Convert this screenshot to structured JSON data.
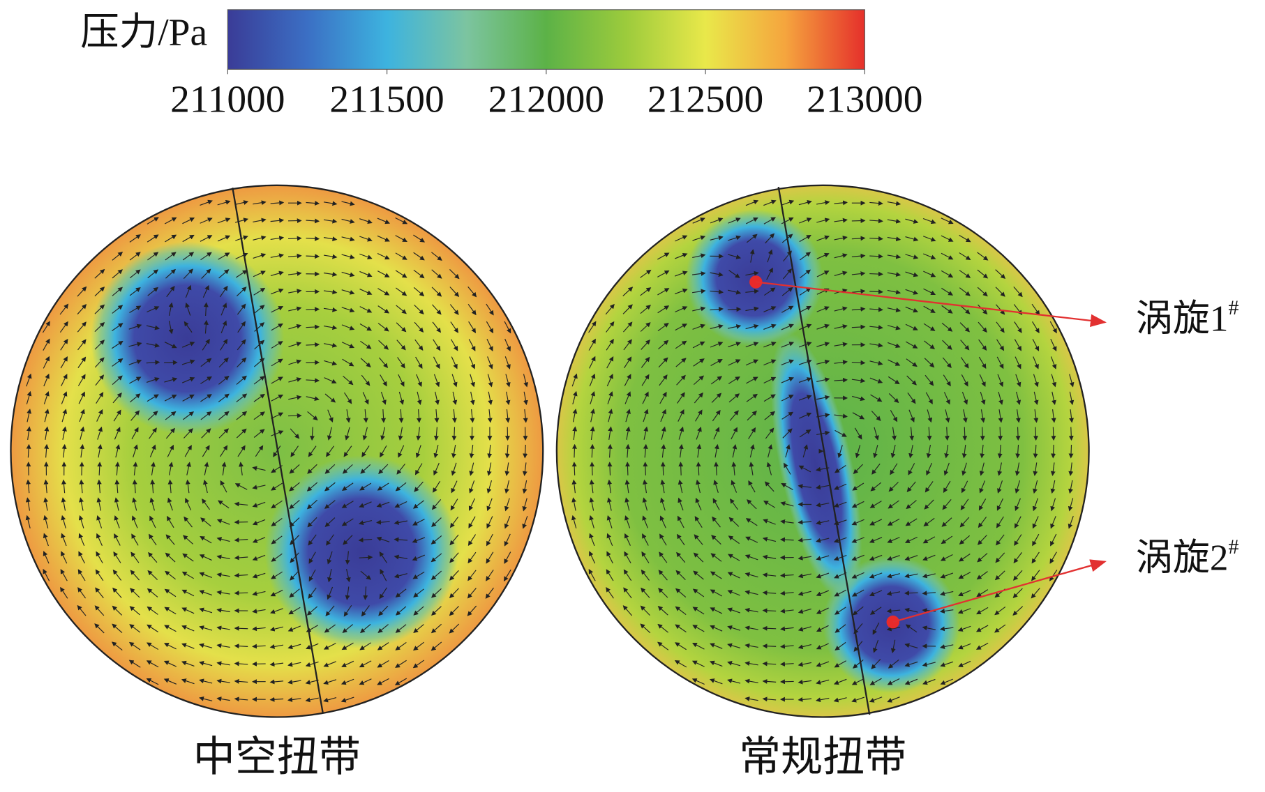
{
  "chart_data": {
    "type": "colorbar",
    "title": "压力/Pa",
    "zlim": [
      211000,
      213000
    ],
    "zticks": [
      211000,
      211500,
      212000,
      212500,
      213000
    ],
    "colors": [
      "#3a3c97",
      "#3b6fc4",
      "#3db3df",
      "#7cc4a0",
      "#5cb247",
      "#9ccb3c",
      "#e9e84a",
      "#f5a53e",
      "#e5302b"
    ],
    "panels": [
      {
        "label": "中空扭带"
      },
      {
        "label": "常规扭带"
      }
    ],
    "vortices": [
      {
        "label": "涡旋1",
        "sup": "#"
      },
      {
        "label": "涡旋2",
        "sup": "#"
      }
    ]
  }
}
